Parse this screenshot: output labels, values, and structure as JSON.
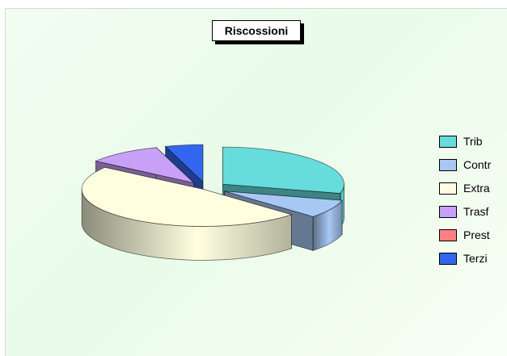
{
  "chart_data": {
    "type": "pie",
    "title": "Riscossioni",
    "style": "3d-exploded",
    "legend_position": "right",
    "categories": [
      "Trib",
      "Contr",
      "Extra",
      "Trasf",
      "Prest",
      "Terzi"
    ],
    "values": [
      29,
      8,
      48,
      10,
      0,
      5
    ],
    "colors": [
      "#66dcdc",
      "#a8c8f4",
      "#ffffe0",
      "#c8a0f8",
      "#ff8080",
      "#3366ee"
    ]
  }
}
